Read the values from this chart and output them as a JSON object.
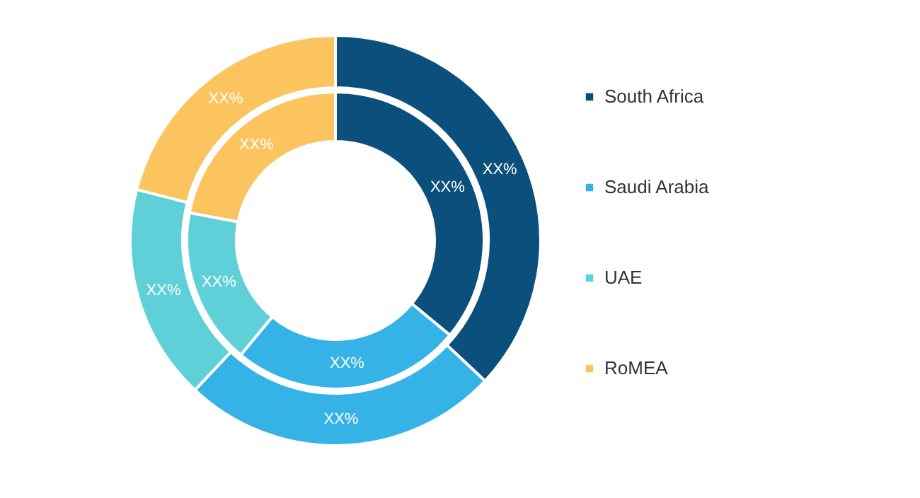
{
  "chart_data": {
    "type": "donut",
    "categories": [
      "South Africa",
      "Saudi Arabia",
      "UAE",
      "RoMEA"
    ],
    "colors": [
      "#0b4f7c",
      "#35b2e6",
      "#5fcfd8",
      "#fcc45f"
    ],
    "legend": "right",
    "series": [
      {
        "values": [
          37,
          25,
          17,
          21
        ],
        "value_labels": [
          "XX%",
          "XX%",
          "XX%",
          "XX%"
        ]
      },
      {
        "values": [
          36,
          25,
          17,
          22
        ],
        "value_labels": [
          "XX%",
          "XX%",
          "XX%",
          "XX%"
        ]
      }
    ]
  }
}
